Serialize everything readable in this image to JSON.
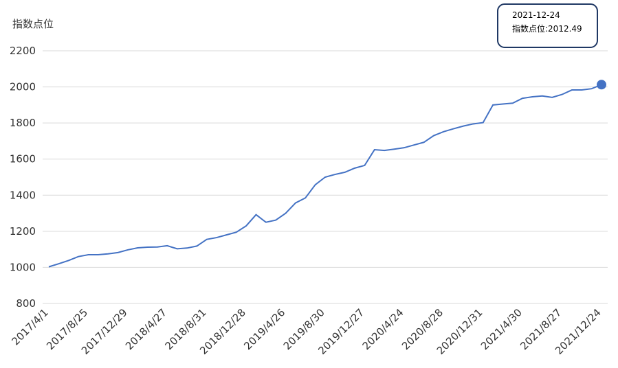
{
  "chart_data": {
    "type": "line",
    "y_axis_label": "指数点位",
    "categories": [
      "2017/4/1",
      null,
      null,
      null,
      "2017/8/25",
      null,
      null,
      null,
      "2017/12/29",
      null,
      null,
      null,
      "2018/4/27",
      null,
      null,
      null,
      "2018/8/31",
      null,
      null,
      null,
      "2018/12/28",
      null,
      null,
      null,
      "2019/4/26",
      null,
      null,
      null,
      "2019/8/30",
      null,
      null,
      null,
      "2019/12/27",
      null,
      null,
      null,
      "2020/4/24",
      null,
      null,
      null,
      "2020/8/28",
      null,
      null,
      null,
      "2020/12/31",
      null,
      null,
      null,
      "2021/4/30",
      null,
      null,
      null,
      "2021/8/27",
      null,
      null,
      null,
      "2021/12/24"
    ],
    "series": [
      {
        "name": "指数点位",
        "color": "#4472c4",
        "values": [
          1003,
          1020,
          1038,
          1060,
          1070,
          1070,
          1075,
          1082,
          1097,
          1108,
          1112,
          1113,
          1120,
          1103,
          1107,
          1118,
          1155,
          1165,
          1180,
          1195,
          1230,
          1292,
          1250,
          1262,
          1300,
          1357,
          1385,
          1458,
          1500,
          1515,
          1527,
          1550,
          1565,
          1652,
          1648,
          1655,
          1663,
          1678,
          1693,
          1730,
          1752,
          1768,
          1783,
          1795,
          1802,
          1900,
          1905,
          1910,
          1937,
          1945,
          1950,
          1942,
          1958,
          1983,
          1983,
          1990,
          2012.49
        ]
      }
    ],
    "ylim": [
      800,
      2200
    ],
    "yticks": [
      800,
      1000,
      1200,
      1400,
      1600,
      1800,
      2000,
      2200
    ],
    "grid": true,
    "tooltip": {
      "date": "2021-12-24",
      "text": "指数点位:2012.49"
    }
  }
}
